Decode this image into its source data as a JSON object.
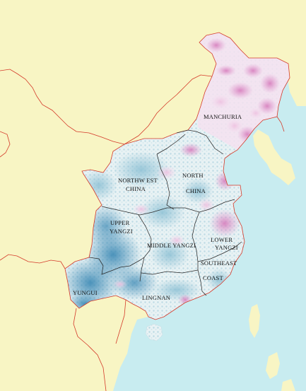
{
  "map": {
    "colors": {
      "sea": "#c8ecf0",
      "land": "#f8f5c4",
      "border": "#d43a2a",
      "region_boundary": "#2a2a2a",
      "density_low": "#e6f2f4",
      "density_mid": "#a8d0dc",
      "density_high": "#3a88b4",
      "density_pink_light": "#f4d8ec",
      "density_pink": "#e29cd0",
      "density_pink_dark": "#c862a8"
    },
    "regions": {
      "manchuria": {
        "label": [
          "MANCHURIA"
        ]
      },
      "north_china": {
        "label": [
          "NORTH",
          "CHINA"
        ]
      },
      "northwest_china": {
        "label": [
          "NORTHW EST",
          "CHINA"
        ]
      },
      "upper_yangzi": {
        "label": [
          "UPPER",
          "YANGZI"
        ]
      },
      "middle_yangzi": {
        "label": [
          "MIDDLE YANGZI"
        ]
      },
      "lower_yangzi": {
        "label": [
          "LOWER",
          "YANGZI"
        ]
      },
      "southeast_coast": {
        "label": [
          "SOUTHEAST",
          "COAST"
        ]
      },
      "lingnan": {
        "label": [
          "LINGNAN"
        ]
      },
      "yungui": {
        "label": [
          "YUNGUI"
        ]
      }
    }
  }
}
